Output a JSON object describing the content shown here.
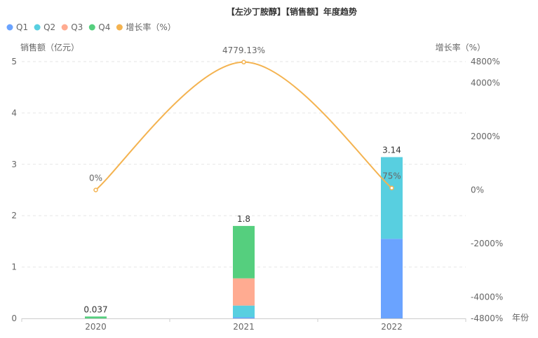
{
  "chart_data": {
    "type": "bar",
    "title": "【左沙丁胺醇】【销售额】年度趋势",
    "categories": [
      "2020",
      "2021",
      "2022"
    ],
    "xlabel": "年份",
    "ylabel": "销售额（亿元）",
    "y2label": "增长率（%）",
    "ylim": [
      0,
      5
    ],
    "yticks": [
      "0",
      "1",
      "2",
      "3",
      "4",
      "5"
    ],
    "y2lim": [
      -4800,
      4800
    ],
    "y2ticks": [
      {
        "value": -4800,
        "label": "-4800%"
      },
      {
        "value": -4000,
        "label": "-4000%"
      },
      {
        "value": -2000,
        "label": "-2000%"
      },
      {
        "value": 0,
        "label": "0%"
      },
      {
        "value": 2000,
        "label": "2000%"
      },
      {
        "value": 4000,
        "label": "4000%"
      },
      {
        "value": 4800,
        "label": "4800%"
      }
    ],
    "legend_position": "top-left",
    "grid": true,
    "stacked": true,
    "series": [
      {
        "name": "Q1",
        "color": "#6aa3ff",
        "values": [
          0,
          0.02,
          1.55
        ]
      },
      {
        "name": "Q2",
        "color": "#58cfe0",
        "values": [
          0,
          0.23,
          1.59
        ]
      },
      {
        "name": "Q3",
        "color": "#ffab91",
        "values": [
          0,
          0.53,
          0
        ]
      },
      {
        "name": "Q4",
        "color": "#55cf7e",
        "values": [
          0.037,
          1.02,
          0
        ]
      }
    ],
    "totals": [
      "0.037",
      "1.8",
      "3.14"
    ],
    "line_series": {
      "name": "增长率（%）",
      "color": "#f4b350",
      "values": [
        0,
        4779.13,
        75
      ],
      "labels": [
        "0%",
        "4779.13%",
        "75%"
      ]
    }
  }
}
